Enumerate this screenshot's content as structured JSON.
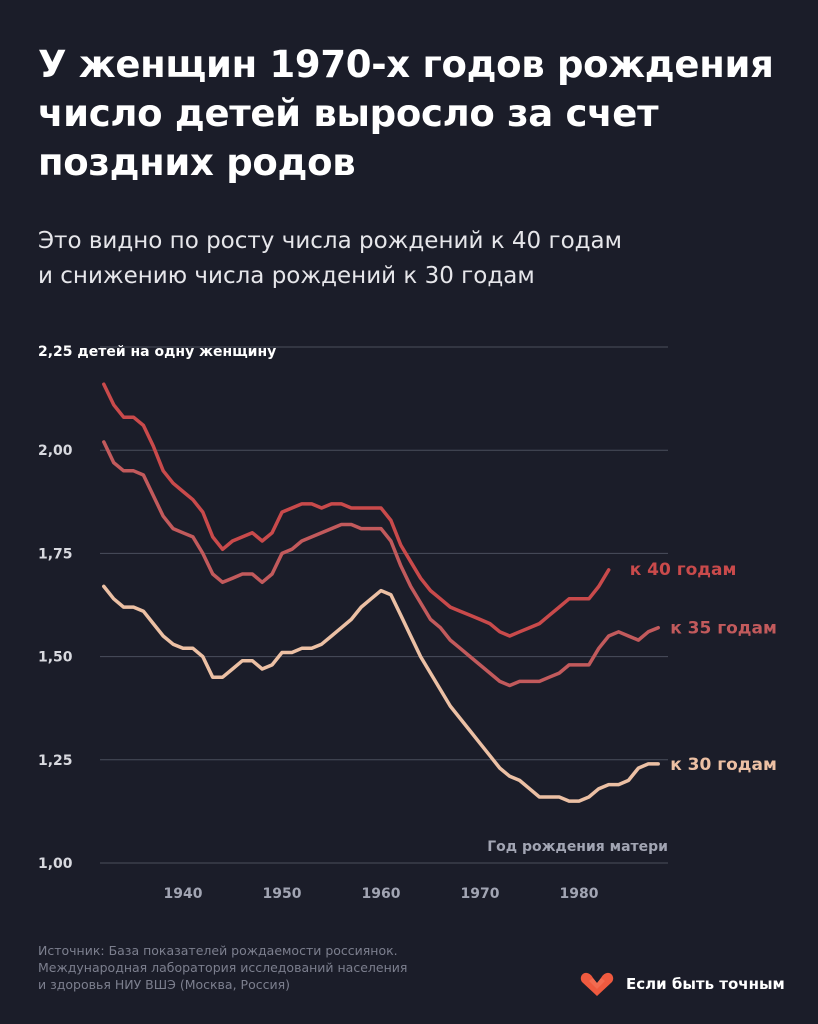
{
  "header": {
    "title_lines": [
      "У женщин 1970-х годов рождения",
      "число детей выросло за счет",
      "поздних родов"
    ],
    "subtitle_lines": [
      "Это видно по росту числа рождений к 40 годам",
      "и снижению числа рождений к 30 годам"
    ]
  },
  "chart_data": {
    "type": "line",
    "y_unit_label": "2,25 детей на одну женщину",
    "x_axis_label": "Год рождения матери",
    "y_ticks": [
      "2,00",
      "1,75",
      "1,50",
      "1,25",
      "1,00"
    ],
    "y_tick_values": [
      2.0,
      1.75,
      1.5,
      1.25,
      1.0
    ],
    "x_ticks": [
      "1940",
      "1950",
      "1960",
      "1970",
      "1980"
    ],
    "x_tick_values": [
      1940,
      1950,
      1960,
      1970,
      1980
    ],
    "ylim": [
      1.0,
      2.25
    ],
    "xlim": [
      1931,
      1990
    ],
    "grid": "horizontal",
    "series": [
      {
        "name": "к 40 годам",
        "color": "#c94a4b",
        "x": [
          1932,
          1933,
          1934,
          1935,
          1936,
          1937,
          1938,
          1939,
          1940,
          1941,
          1942,
          1943,
          1944,
          1945,
          1946,
          1947,
          1948,
          1949,
          1950,
          1951,
          1952,
          1953,
          1954,
          1955,
          1956,
          1957,
          1958,
          1959,
          1960,
          1961,
          1962,
          1963,
          1964,
          1965,
          1966,
          1967,
          1968,
          1969,
          1970,
          1971,
          1972,
          1973,
          1974,
          1975,
          1976,
          1977,
          1978,
          1979,
          1980,
          1981,
          1982,
          1983
        ],
        "values": [
          2.16,
          2.11,
          2.08,
          2.08,
          2.06,
          2.01,
          1.95,
          1.92,
          1.9,
          1.88,
          1.85,
          1.79,
          1.76,
          1.78,
          1.79,
          1.8,
          1.78,
          1.8,
          1.85,
          1.86,
          1.87,
          1.87,
          1.86,
          1.87,
          1.87,
          1.86,
          1.86,
          1.86,
          1.86,
          1.83,
          1.77,
          1.73,
          1.69,
          1.66,
          1.64,
          1.62,
          1.61,
          1.6,
          1.59,
          1.58,
          1.56,
          1.55,
          1.56,
          1.57,
          1.58,
          1.6,
          1.62,
          1.64,
          1.64,
          1.64,
          1.67,
          1.71
        ]
      },
      {
        "name": "к 35 годам",
        "color": "#c25a5c",
        "x": [
          1932,
          1933,
          1934,
          1935,
          1936,
          1937,
          1938,
          1939,
          1940,
          1941,
          1942,
          1943,
          1944,
          1945,
          1946,
          1947,
          1948,
          1949,
          1950,
          1951,
          1952,
          1953,
          1954,
          1955,
          1956,
          1957,
          1958,
          1959,
          1960,
          1961,
          1962,
          1963,
          1964,
          1965,
          1966,
          1967,
          1968,
          1969,
          1970,
          1971,
          1972,
          1973,
          1974,
          1975,
          1976,
          1977,
          1978,
          1979,
          1980,
          1981,
          1982,
          1983,
          1984,
          1985,
          1986,
          1987,
          1988
        ],
        "values": [
          2.02,
          1.97,
          1.95,
          1.95,
          1.94,
          1.89,
          1.84,
          1.81,
          1.8,
          1.79,
          1.75,
          1.7,
          1.68,
          1.69,
          1.7,
          1.7,
          1.68,
          1.7,
          1.75,
          1.76,
          1.78,
          1.79,
          1.8,
          1.81,
          1.82,
          1.82,
          1.81,
          1.81,
          1.81,
          1.78,
          1.72,
          1.67,
          1.63,
          1.59,
          1.57,
          1.54,
          1.52,
          1.5,
          1.48,
          1.46,
          1.44,
          1.43,
          1.44,
          1.44,
          1.44,
          1.45,
          1.46,
          1.48,
          1.48,
          1.48,
          1.52,
          1.55,
          1.56,
          1.55,
          1.54,
          1.56,
          1.57
        ]
      },
      {
        "name": "к 30 годам",
        "color": "#ecc0a4",
        "x": [
          1932,
          1933,
          1934,
          1935,
          1936,
          1937,
          1938,
          1939,
          1940,
          1941,
          1942,
          1943,
          1944,
          1945,
          1946,
          1947,
          1948,
          1949,
          1950,
          1951,
          1952,
          1953,
          1954,
          1955,
          1956,
          1957,
          1958,
          1959,
          1960,
          1961,
          1962,
          1963,
          1964,
          1965,
          1966,
          1967,
          1968,
          1969,
          1970,
          1971,
          1972,
          1973,
          1974,
          1975,
          1976,
          1977,
          1978,
          1979,
          1980,
          1981,
          1982,
          1983,
          1984,
          1985,
          1986,
          1987,
          1988
        ],
        "values": [
          1.67,
          1.64,
          1.62,
          1.62,
          1.61,
          1.58,
          1.55,
          1.53,
          1.52,
          1.52,
          1.5,
          1.45,
          1.45,
          1.47,
          1.49,
          1.49,
          1.47,
          1.48,
          1.51,
          1.51,
          1.52,
          1.52,
          1.53,
          1.55,
          1.57,
          1.59,
          1.62,
          1.64,
          1.66,
          1.65,
          1.6,
          1.55,
          1.5,
          1.46,
          1.42,
          1.38,
          1.35,
          1.32,
          1.29,
          1.26,
          1.23,
          1.21,
          1.2,
          1.18,
          1.16,
          1.16,
          1.16,
          1.15,
          1.15,
          1.16,
          1.18,
          1.19,
          1.19,
          1.2,
          1.23,
          1.24,
          1.24
        ]
      }
    ]
  },
  "footer": {
    "source_lines": [
      "Источник: База показателей рождаемости россиянок.",
      "Международная лаборатория исследований населения",
      "и здоровья НИУ ВШЭ (Москва, Россия)"
    ],
    "brand_name": "Если быть точным",
    "brand_color": "#ef5a3f",
    "brand_icon": "heart-icon"
  },
  "colors": {
    "background": "#1b1d29",
    "grid": "#4b4e5c",
    "tick_label": "#a2a5b3"
  }
}
